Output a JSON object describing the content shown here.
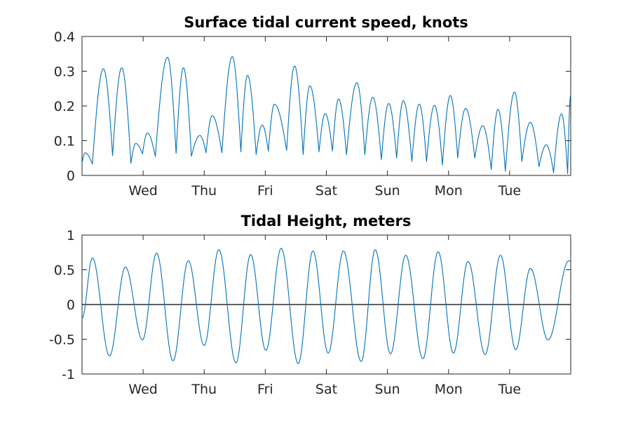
{
  "chart_data": [
    {
      "type": "line",
      "title": "Surface tidal current speed, knots",
      "xlabel": "",
      "ylabel": "",
      "ylim": [
        0,
        0.4
      ],
      "yticks": [
        0,
        0.1,
        0.2,
        0.3,
        0.4
      ],
      "ytick_labels": [
        "0",
        "0.1",
        "0.2",
        "0.3",
        "0.4"
      ],
      "xlim_days": [
        0,
        8
      ],
      "xticks_days": [
        1,
        2,
        3,
        4,
        5,
        6,
        7
      ],
      "xtick_labels": [
        "Wed",
        "Thu",
        "Fri",
        "Sat",
        "Sun",
        "Mon",
        "Tue"
      ],
      "grid": false,
      "series": [
        {
          "color": "#0072bd",
          "kind": "current_speed",
          "peaks": [
            [
              0.05,
              0.065
            ],
            [
              0.35,
              0.307
            ],
            [
              0.65,
              0.31
            ],
            [
              0.88,
              0.092
            ],
            [
              1.07,
              0.122
            ],
            [
              1.4,
              0.34
            ],
            [
              1.66,
              0.31
            ],
            [
              1.93,
              0.115
            ],
            [
              2.13,
              0.172
            ],
            [
              2.46,
              0.342
            ],
            [
              2.71,
              0.288
            ],
            [
              2.95,
              0.145
            ],
            [
              3.15,
              0.205
            ],
            [
              3.48,
              0.315
            ],
            [
              3.73,
              0.258
            ],
            [
              3.98,
              0.178
            ],
            [
              4.2,
              0.22
            ],
            [
              4.5,
              0.267
            ],
            [
              4.76,
              0.225
            ],
            [
              5.02,
              0.207
            ],
            [
              5.26,
              0.215
            ],
            [
              5.52,
              0.205
            ],
            [
              5.77,
              0.202
            ],
            [
              6.03,
              0.23
            ],
            [
              6.28,
              0.193
            ],
            [
              6.56,
              0.143
            ],
            [
              6.81,
              0.19
            ],
            [
              7.08,
              0.24
            ],
            [
              7.34,
              0.153
            ],
            [
              7.6,
              0.088
            ],
            [
              7.85,
              0.177
            ],
            [
              8.0,
              0.232
            ]
          ],
          "troughs": [
            [
              0.0,
              0.035
            ],
            [
              0.17,
              0.033
            ],
            [
              0.5,
              0.057
            ],
            [
              0.8,
              0.035
            ],
            [
              0.99,
              0.062
            ],
            [
              1.2,
              0.055
            ],
            [
              1.54,
              0.063
            ],
            [
              1.79,
              0.055
            ],
            [
              2.03,
              0.065
            ],
            [
              2.29,
              0.065
            ],
            [
              2.6,
              0.068
            ],
            [
              2.85,
              0.06
            ],
            [
              3.05,
              0.07
            ],
            [
              3.35,
              0.072
            ],
            [
              3.62,
              0.06
            ],
            [
              3.88,
              0.068
            ],
            [
              4.1,
              0.07
            ],
            [
              4.33,
              0.06
            ],
            [
              4.63,
              0.06
            ],
            [
              4.9,
              0.045
            ],
            [
              5.15,
              0.05
            ],
            [
              5.4,
              0.04
            ],
            [
              5.64,
              0.04
            ],
            [
              5.9,
              0.03
            ],
            [
              6.15,
              0.05
            ],
            [
              6.43,
              0.05
            ],
            [
              6.7,
              0.017
            ],
            [
              6.93,
              0.012
            ],
            [
              7.2,
              0.04
            ],
            [
              7.48,
              0.025
            ],
            [
              7.72,
              0.008
            ],
            [
              7.95,
              0.005
            ]
          ]
        }
      ]
    },
    {
      "type": "line",
      "title": "Tidal Height, meters",
      "xlabel": "",
      "ylabel": "",
      "ylim": [
        -1,
        1
      ],
      "yticks": [
        -1,
        -0.5,
        0,
        0.5,
        1
      ],
      "ytick_labels": [
        "-1",
        "-0.5",
        "0",
        "0.5",
        "1"
      ],
      "xlim_days": [
        0,
        8
      ],
      "xticks_days": [
        1,
        2,
        3,
        4,
        5,
        6,
        7
      ],
      "xtick_labels": [
        "Wed",
        "Thu",
        "Fri",
        "Sat",
        "Sun",
        "Mon",
        "Tue"
      ],
      "grid": false,
      "zero_line": true,
      "series": [
        {
          "color": "#0072bd",
          "kind": "tidal_height",
          "start": -0.2,
          "extrema": [
            [
              0.17,
              0.67
            ],
            [
              0.45,
              -0.74
            ],
            [
              0.71,
              0.54
            ],
            [
              0.99,
              -0.51
            ],
            [
              1.22,
              0.74
            ],
            [
              1.49,
              -0.81
            ],
            [
              1.74,
              0.63
            ],
            [
              2.0,
              -0.59
            ],
            [
              2.24,
              0.79
            ],
            [
              2.52,
              -0.84
            ],
            [
              2.76,
              0.72
            ],
            [
              3.01,
              -0.66
            ],
            [
              3.26,
              0.81
            ],
            [
              3.54,
              -0.85
            ],
            [
              3.78,
              0.77
            ],
            [
              4.03,
              -0.7
            ],
            [
              4.28,
              0.77
            ],
            [
              4.57,
              -0.82
            ],
            [
              4.8,
              0.79
            ],
            [
              5.05,
              -0.71
            ],
            [
              5.3,
              0.71
            ],
            [
              5.58,
              -0.78
            ],
            [
              5.83,
              0.76
            ],
            [
              6.08,
              -0.7
            ],
            [
              6.32,
              0.62
            ],
            [
              6.6,
              -0.72
            ],
            [
              6.85,
              0.71
            ],
            [
              7.1,
              -0.65
            ],
            [
              7.34,
              0.52
            ],
            [
              7.63,
              -0.51
            ],
            [
              7.97,
              0.63
            ]
          ],
          "end": 0.62
        }
      ]
    }
  ]
}
